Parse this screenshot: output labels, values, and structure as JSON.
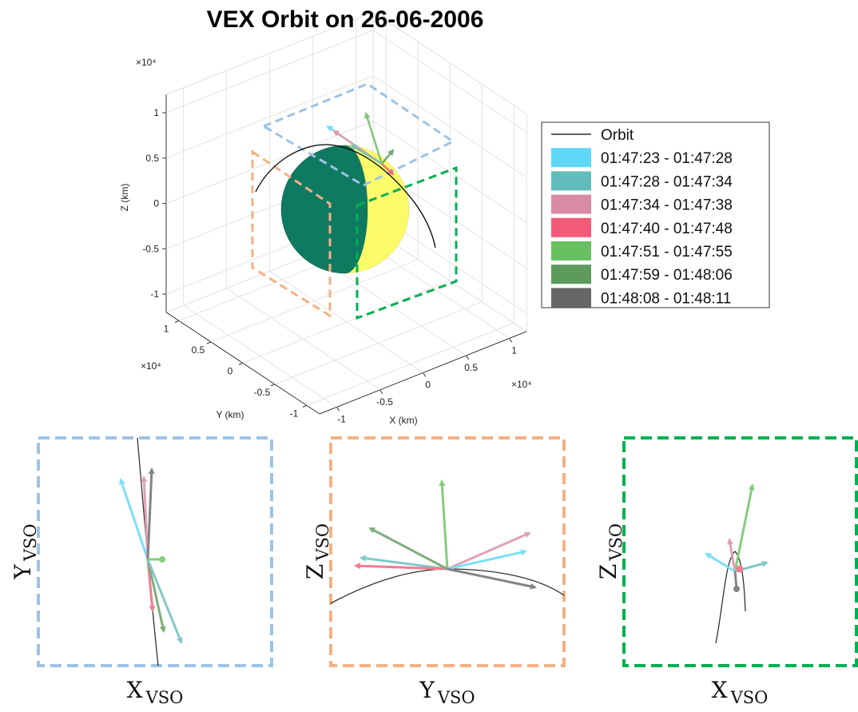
{
  "chart_data": {
    "type": "line3d",
    "title": "VEX Orbit on 26-06-2006",
    "xlabel": "X (km)",
    "ylabel": "Y (km)",
    "zlabel": "Z (km)",
    "x_exponent": "×10⁴",
    "y_exponent": "×10⁴",
    "z_exponent": "×10⁴",
    "xlim": [
      -12000,
      12000
    ],
    "ylim": [
      -12000,
      12000
    ],
    "zlim": [
      -12000,
      12000
    ],
    "xticks": [
      {
        "value": -10000,
        "label": "-1"
      },
      {
        "value": -5000,
        "label": "-0.5"
      },
      0,
      {
        "value": 5000,
        "label": "0.5"
      },
      {
        "value": 10000,
        "label": "1"
      }
    ],
    "yticks": [
      {
        "value": -10000,
        "label": "-1"
      },
      {
        "value": -5000,
        "label": "-0.5"
      },
      0,
      {
        "value": 5000,
        "label": "0.5"
      },
      {
        "value": 10000,
        "label": "1"
      }
    ],
    "zticks": [
      {
        "value": -10000,
        "label": "-1"
      },
      {
        "value": -5000,
        "label": "-0.5"
      },
      0,
      {
        "value": 5000,
        "label": "0.5"
      },
      {
        "value": 10000,
        "label": "1"
      }
    ],
    "grid": true,
    "legend": "right",
    "series": [
      {
        "name": "Orbit",
        "color": "#000000"
      },
      {
        "name": "01:47:23 - 01:47:28",
        "color": "#5fd8f7"
      },
      {
        "name": "01:47:28 - 01:47:34",
        "color": "#63bcbc"
      },
      {
        "name": "01:47:34 - 01:47:38",
        "color": "#d98aa6"
      },
      {
        "name": "01:47:40 - 01:47:48",
        "color": "#f25a78"
      },
      {
        "name": "01:47:51 - 01:47:55",
        "color": "#68c05e"
      },
      {
        "name": "01:47:59 - 01:48:06",
        "color": "#5e9a5c"
      },
      {
        "name": "01:48:08 - 01:48:11",
        "color": "#666666"
      }
    ]
  },
  "panels": [
    {
      "xlabel": {
        "main": "X",
        "sub": "VSO"
      },
      "ylabel": {
        "main": "Y",
        "sub": "VSO"
      }
    },
    {
      "xlabel": {
        "main": "Y",
        "sub": "VSO"
      },
      "ylabel": {
        "main": "Z",
        "sub": "VSO"
      }
    },
    {
      "xlabel": {
        "main": "X",
        "sub": "VSO"
      },
      "ylabel": {
        "main": "Z",
        "sub": "VSO"
      }
    }
  ]
}
